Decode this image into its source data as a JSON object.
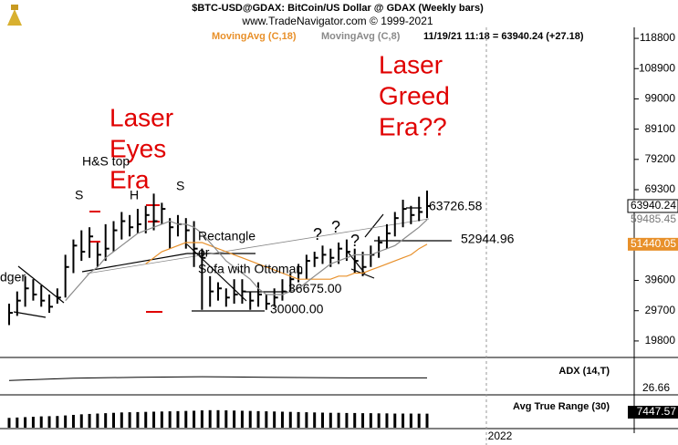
{
  "chart_data": {
    "type": "ohlc",
    "title": "$BTC-USD@GDAX:  BitCoin/US Dollar @ GDAX  (Weekly bars)",
    "subtitle": "www.TradeNavigator.com © 1999-2021",
    "status": "11/19/21 11:18 = 63940.24 (+27.18)",
    "ylim": [
      15000,
      122400
    ],
    "yticks": [
      118800,
      108900,
      99000,
      89100,
      79200,
      69300,
      39600,
      29700,
      19800
    ],
    "high": [
      32000,
      36000,
      41000,
      40000,
      38000,
      35000,
      37000,
      48000,
      53000,
      56000,
      57000,
      52000,
      58000,
      59000,
      62000,
      61000,
      63000,
      64000,
      68000,
      65000,
      60000,
      61000,
      60000,
      59000,
      50000,
      41000,
      39000,
      37000,
      40000,
      40000,
      36000,
      39000,
      35000,
      37000,
      40000,
      42000,
      45000,
      48000,
      49000,
      51000,
      50000,
      52000,
      53000,
      50000,
      49000,
      51000,
      54000,
      58000,
      62000,
      66000,
      64000,
      67000,
      69000
    ],
    "low": [
      25000,
      28000,
      31000,
      33000,
      31000,
      29000,
      32000,
      34000,
      42000,
      46000,
      47000,
      44000,
      46000,
      49000,
      53000,
      54000,
      55000,
      55000,
      56000,
      58000,
      50000,
      54000,
      50000,
      44000,
      30000,
      31000,
      33000,
      31000,
      32000,
      32000,
      30000,
      31000,
      30000,
      31000,
      33000,
      36000,
      39000,
      40000,
      44000,
      45000,
      44000,
      45000,
      46000,
      42000,
      41000,
      44000,
      47000,
      50000,
      54000,
      57000,
      58000,
      59000,
      60000
    ],
    "close": [
      29000,
      33000,
      37000,
      35000,
      33000,
      31000,
      34000,
      44000,
      51000,
      49000,
      54000,
      48000,
      50000,
      56000,
      59000,
      57000,
      58000,
      61000,
      59000,
      63000,
      57000,
      58000,
      56000,
      50000,
      47000,
      36000,
      37000,
      34000,
      35000,
      36000,
      33000,
      35000,
      32000,
      34000,
      36000,
      40000,
      42000,
      46000,
      47000,
      48000,
      47000,
      50000,
      49000,
      46000,
      44000,
      48000,
      52000,
      55000,
      60000,
      63000,
      61000,
      62000,
      63940.24
    ],
    "series": [
      {
        "name": "MovingAvg (C,18)",
        "color": "#e8902a",
        "values": [
          null,
          null,
          null,
          null,
          null,
          null,
          null,
          null,
          null,
          null,
          null,
          null,
          null,
          null,
          null,
          null,
          null,
          45000,
          47000,
          49000,
          50000,
          51000,
          52000,
          52000,
          52000,
          51000,
          50000,
          49000,
          48000,
          47000,
          46000,
          45000,
          44000,
          43000,
          42000,
          41000,
          40000,
          40000,
          40000,
          40000,
          40000,
          41000,
          41000,
          42000,
          42000,
          43000,
          44000,
          45000,
          46000,
          47000,
          48000,
          50000,
          51440.05
        ]
      },
      {
        "name": "MovingAvg (C,8)",
        "color": "#8a8a8a",
        "values": [
          null,
          null,
          null,
          null,
          null,
          null,
          null,
          33000,
          36000,
          39000,
          42000,
          44000,
          47000,
          49000,
          51000,
          53000,
          55000,
          56000,
          57000,
          58000,
          59000,
          58000,
          58000,
          57000,
          55000,
          52000,
          49000,
          46000,
          44000,
          42000,
          40000,
          37000,
          35000,
          35000,
          35000,
          36000,
          37000,
          39000,
          41000,
          43000,
          45000,
          46000,
          47000,
          48000,
          48000,
          48000,
          49000,
          50000,
          51000,
          53000,
          55000,
          57000,
          59485.45
        ]
      }
    ],
    "levels": [
      {
        "text": "63726.58",
        "value": 63726.58
      },
      {
        "text": "52944.96",
        "value": 52944.96
      },
      {
        "text": "36675.00",
        "value": 36675
      },
      {
        "text": "30000.00",
        "value": 30000
      }
    ],
    "notes": {
      "eyes": [
        "Laser",
        "Eyes",
        "Era"
      ],
      "greed": [
        "Laser",
        "Greed",
        "Era??"
      ],
      "hs": "H&S top",
      "s1": "S",
      "h": "H",
      "s2": "S",
      "rect": [
        "Rectangle",
        "or",
        "Sofa with Ottoman"
      ],
      "q": [
        "?",
        "?",
        "?"
      ],
      "cut": "dger"
    },
    "adx": {
      "label": "ADX (14,T)",
      "x": [
        0,
        8,
        16,
        24,
        32,
        40,
        52
      ],
      "values": [
        22,
        26,
        28,
        29,
        28,
        27,
        26.66
      ],
      "ylim": [
        0,
        60
      ]
    },
    "atr": {
      "label": "Avg True Range (30)",
      "ylim": [
        0,
        16000
      ],
      "values": [
        5200,
        5400,
        5600,
        5800,
        6000,
        6100,
        6200,
        6500,
        6800,
        7100,
        7300,
        7500,
        7700,
        7900,
        8100,
        8200,
        8300,
        8400,
        8500,
        8600,
        8700,
        8800,
        8900,
        9000,
        9200,
        9300,
        9300,
        9200,
        9100,
        9000,
        8900,
        8800,
        8700,
        8600,
        8500,
        8400,
        8300,
        8200,
        8100,
        8000,
        7900,
        7900,
        7800,
        7800,
        7700,
        7700,
        7600,
        7600,
        7500,
        7500,
        7500,
        7450,
        7447.57
      ]
    },
    "xlabel": "2022"
  }
}
